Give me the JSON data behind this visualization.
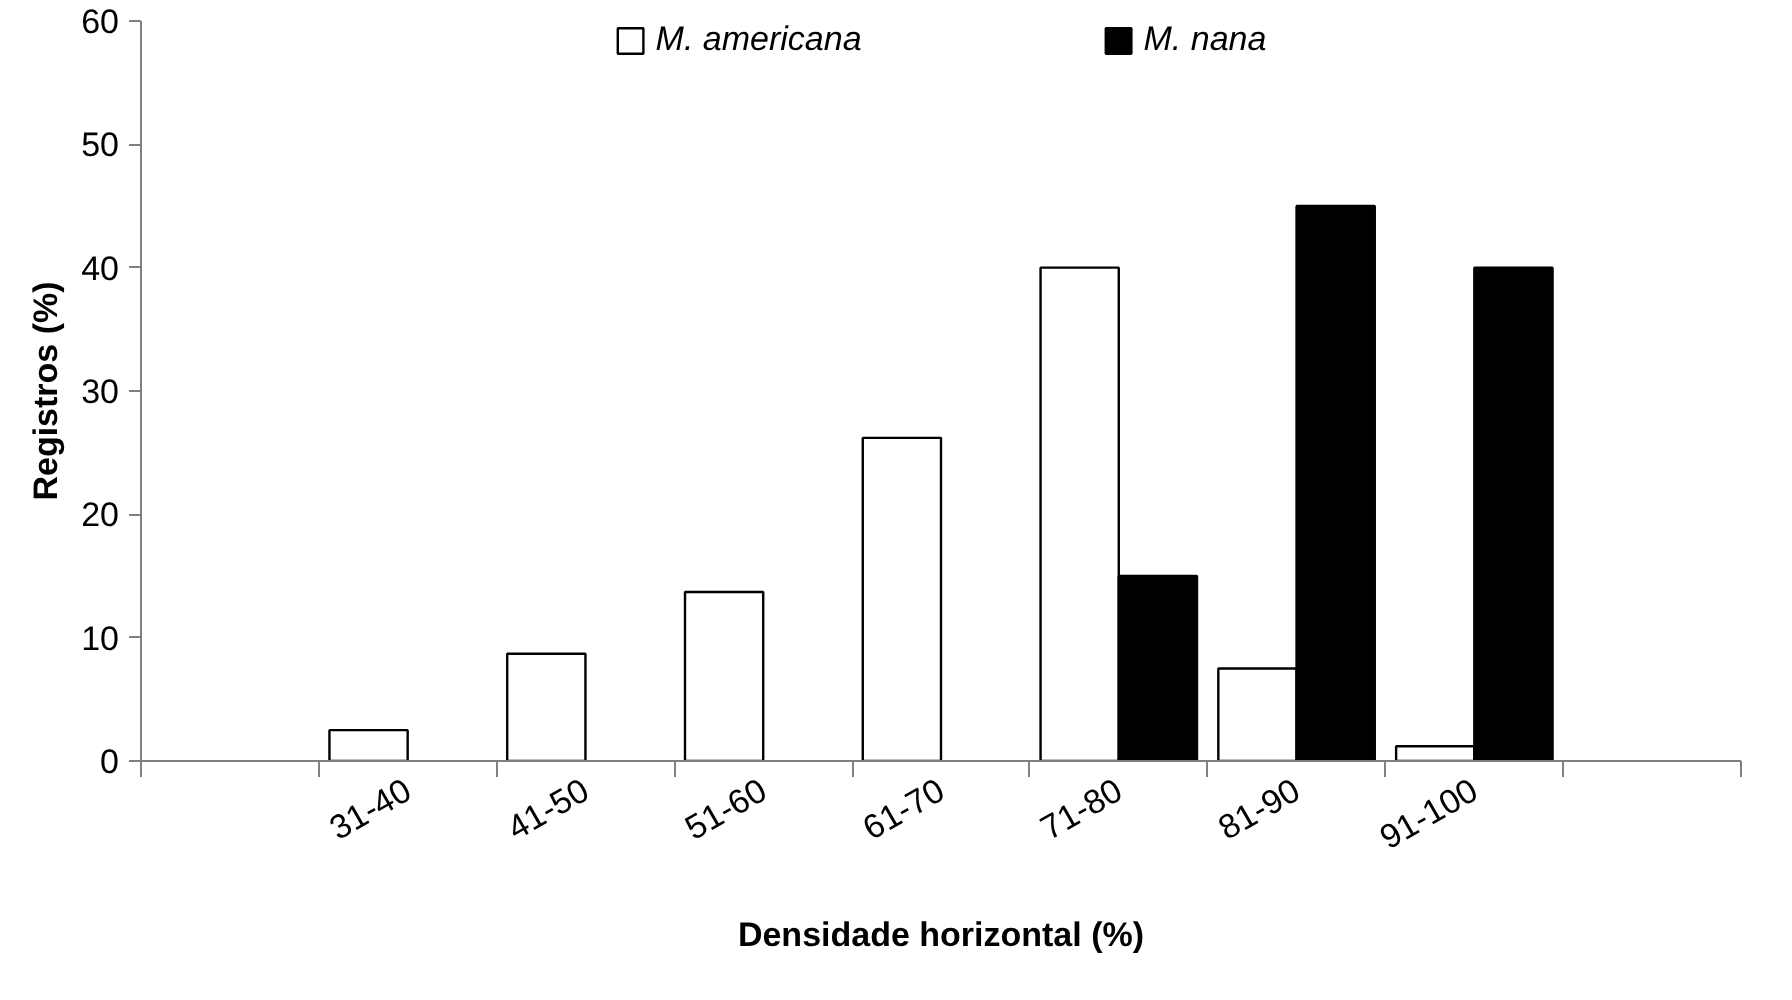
{
  "chart_data": {
    "type": "bar",
    "xlabel": "Densidade horizontal (%)",
    "ylabel": "Registros (%)",
    "categories": [
      null,
      "31-40",
      "41-50",
      "51-60",
      "61-70",
      "71-80",
      "81-90",
      "91-100",
      null
    ],
    "series": [
      {
        "name": "M. americana",
        "color": "#ffffff",
        "values": [
          null,
          2.5,
          8.7,
          13.7,
          26.2,
          40,
          7.5,
          1.2,
          null
        ]
      },
      {
        "name": "M. nana",
        "color": "#000000",
        "values": [
          null,
          null,
          null,
          null,
          null,
          15,
          45,
          40,
          null
        ]
      }
    ],
    "ylim": [
      0,
      60
    ],
    "yticks": [
      0,
      10,
      20,
      30,
      40,
      50,
      60
    ],
    "grid": false,
    "legend": "top"
  }
}
